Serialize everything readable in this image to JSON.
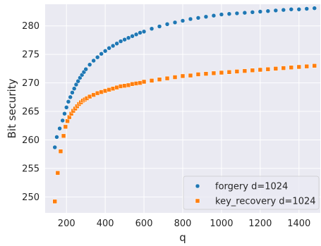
{
  "chart_data": {
    "type": "scatter",
    "title": "",
    "xlabel": "q",
    "ylabel": "Bit security",
    "xlim": [
      90,
      1510
    ],
    "ylim": [
      247.2,
      283.8
    ],
    "xticks": [
      200,
      400,
      600,
      800,
      1000,
      1200,
      1400
    ],
    "yticks": [
      250,
      255,
      260,
      265,
      270,
      275,
      280
    ],
    "grid": true,
    "legend_position": "lower-right",
    "colors": {
      "background": "#eaeaf2",
      "grid": "#ffffff",
      "forgery": "#1f77b4",
      "key_recovery": "#ff7f0e"
    },
    "series": [
      {
        "name": "forgery d=1024",
        "marker": "circle",
        "x": [
          140,
          150,
          165,
          180,
          190,
          200,
          210,
          220,
          230,
          240,
          250,
          260,
          270,
          280,
          290,
          300,
          320,
          340,
          360,
          380,
          400,
          420,
          440,
          460,
          480,
          500,
          520,
          540,
          560,
          580,
          600,
          640,
          680,
          720,
          760,
          800,
          840,
          880,
          920,
          960,
          1000,
          1040,
          1080,
          1120,
          1160,
          1200,
          1240,
          1280,
          1320,
          1360,
          1400,
          1440,
          1480
        ],
        "y": [
          258.7,
          260.5,
          262.0,
          263.4,
          264.6,
          265.7,
          266.7,
          267.5,
          268.3,
          269.0,
          269.7,
          270.3,
          270.9,
          271.4,
          271.9,
          272.4,
          273.2,
          273.9,
          274.5,
          275.1,
          275.6,
          276.1,
          276.5,
          276.9,
          277.3,
          277.6,
          277.9,
          278.2,
          278.5,
          278.8,
          279.0,
          279.5,
          279.9,
          280.3,
          280.6,
          280.9,
          281.2,
          281.4,
          281.6,
          281.8,
          282.0,
          282.1,
          282.2,
          282.3,
          282.4,
          282.5,
          282.6,
          282.7,
          282.8,
          282.9,
          282.9,
          283.0,
          283.1
        ]
      },
      {
        "name": "key_recovery d=1024",
        "marker": "square",
        "x": [
          140,
          155,
          170,
          185,
          195,
          205,
          215,
          225,
          235,
          245,
          255,
          265,
          275,
          285,
          295,
          305,
          320,
          340,
          360,
          380,
          400,
          420,
          440,
          460,
          480,
          500,
          520,
          540,
          560,
          580,
          600,
          640,
          680,
          720,
          760,
          800,
          840,
          880,
          920,
          960,
          1000,
          1040,
          1080,
          1120,
          1160,
          1200,
          1240,
          1280,
          1320,
          1360,
          1400,
          1440,
          1480
        ],
        "y": [
          249.2,
          254.2,
          258.0,
          260.7,
          262.3,
          263.3,
          264.0,
          264.6,
          265.1,
          265.5,
          265.9,
          266.3,
          266.6,
          266.9,
          267.1,
          267.3,
          267.6,
          267.9,
          268.2,
          268.4,
          268.6,
          268.8,
          269.0,
          269.2,
          269.4,
          269.5,
          269.6,
          269.8,
          269.9,
          270.0,
          270.2,
          270.4,
          270.6,
          270.8,
          271.0,
          271.2,
          271.3,
          271.5,
          271.6,
          271.7,
          271.8,
          271.9,
          272.0,
          272.1,
          272.2,
          272.3,
          272.4,
          272.5,
          272.6,
          272.7,
          272.8,
          272.9,
          273.0
        ]
      }
    ]
  }
}
